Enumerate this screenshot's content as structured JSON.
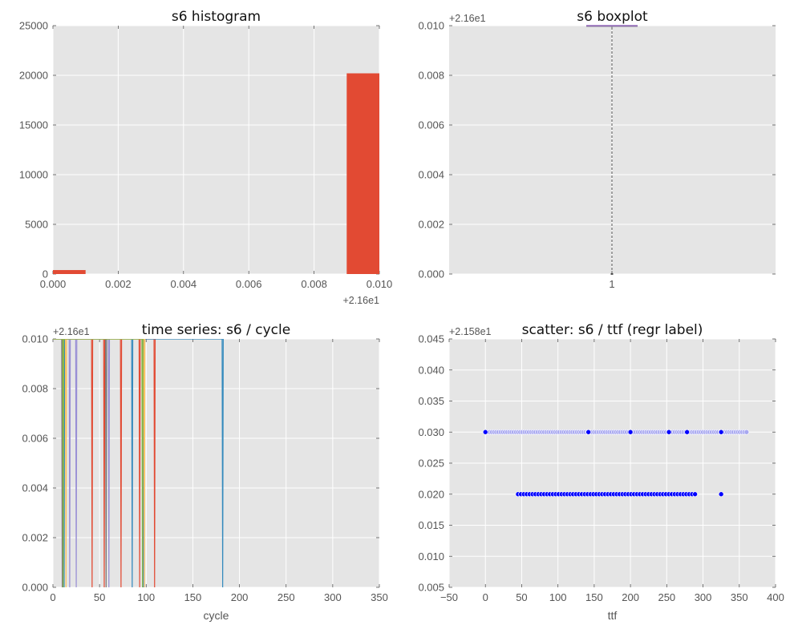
{
  "colors": {
    "plot_bg": "#E5E5E5",
    "grid": "#FFFFFF",
    "tick_text": "#555555",
    "hist_bar": "#E24A33",
    "box": "#9467BD",
    "series": [
      "#E24A33",
      "#348ABD",
      "#988ED5",
      "#777777",
      "#FBC15E",
      "#8EBA42",
      "#FFB5B8"
    ],
    "scatter_dark": "#0000FF",
    "scatter_light": "#A8A8F0"
  },
  "chart_data": [
    {
      "id": "hist",
      "type": "bar",
      "title": "s6 histogram",
      "xlabel": "",
      "ylabel": "",
      "x_offset_label": "+2.16e1",
      "xlim": [
        0,
        0.01
      ],
      "ylim": [
        0,
        25000
      ],
      "xticks": [
        "0.000",
        "0.002",
        "0.004",
        "0.006",
        "0.008",
        "0.010"
      ],
      "yticks": [
        "0",
        "5000",
        "10000",
        "15000",
        "20000",
        "25000"
      ],
      "bins": [
        {
          "x0": 0.0,
          "x1": 0.001,
          "count": 400
        },
        {
          "x0": 0.009,
          "x1": 0.01,
          "count": 20200
        }
      ]
    },
    {
      "id": "box",
      "type": "box",
      "title": "s6 boxplot",
      "xlabel": "",
      "ylabel": "",
      "y_offset_label": "+2.16e1",
      "ylim": [
        0,
        0.01
      ],
      "xticks": [
        "1"
      ],
      "yticks": [
        "0.000",
        "0.002",
        "0.004",
        "0.006",
        "0.008",
        "0.010"
      ],
      "box": {
        "q1": 0.01,
        "median": 0.01,
        "q3": 0.01,
        "whisker_low": 0.0,
        "whisker_high": 0.01
      }
    },
    {
      "id": "ts",
      "type": "line",
      "title": "time series: s6 / cycle",
      "xlabel": "cycle",
      "ylabel": "",
      "y_offset_label": "+2.16e1",
      "xlim": [
        0,
        350
      ],
      "ylim": [
        0,
        0.01
      ],
      "xticks": [
        "0",
        "50",
        "100",
        "150",
        "200",
        "250",
        "300",
        "350"
      ],
      "yticks": [
        "0.000",
        "0.002",
        "0.004",
        "0.006",
        "0.008",
        "0.010"
      ],
      "series": [
        {
          "cycle_end": 109,
          "drops": [
            42,
            55,
            73,
            93,
            109
          ]
        },
        {
          "cycle_end": 182,
          "drops": [
            12,
            85,
            97,
            182
          ]
        },
        {
          "cycle_end": 60,
          "drops": [
            18,
            25,
            60
          ]
        },
        {
          "cycle_end": 57,
          "drops": [
            10,
            57
          ]
        },
        {
          "cycle_end": 98,
          "drops": [
            14,
            98
          ]
        },
        {
          "cycle_end": 96,
          "drops": [
            11,
            96
          ]
        }
      ]
    },
    {
      "id": "scatter",
      "type": "scatter",
      "title": "scatter: s6 / ttf (regr label)",
      "xlabel": "ttf",
      "ylabel": "",
      "y_offset_label": "+2.158e1",
      "xlim": [
        -50,
        400
      ],
      "ylim": [
        0.005,
        0.045
      ],
      "xticks": [
        "−50",
        "0",
        "50",
        "100",
        "150",
        "200",
        "250",
        "300",
        "350",
        "400"
      ],
      "yticks": [
        "0.005",
        "0.010",
        "0.015",
        "0.020",
        "0.025",
        "0.030",
        "0.035",
        "0.040",
        "0.045"
      ],
      "rows": [
        {
          "y": 0.03,
          "x_start": 0,
          "x_end": 362,
          "step": 3,
          "style": "light",
          "dark_x": [
            0,
            142,
            200,
            253,
            278,
            325
          ]
        },
        {
          "y": 0.02,
          "x_start": 45,
          "x_end": 290,
          "step": 4,
          "style": "dark",
          "dark_x": [
            325
          ]
        }
      ]
    }
  ]
}
